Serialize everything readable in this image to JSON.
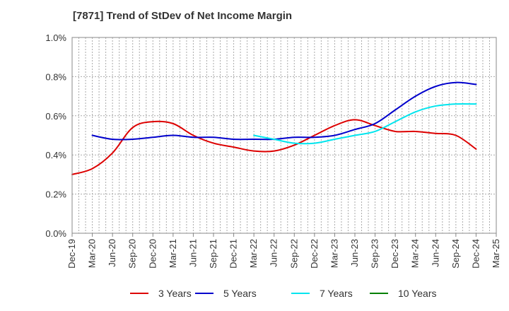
{
  "chart_data": {
    "type": "line",
    "title": "[7871]  Trend of StDev of Net Income Margin",
    "xlabel": "",
    "ylabel": "",
    "x": [
      "Dec-19",
      "Mar-20",
      "Jun-20",
      "Sep-20",
      "Dec-20",
      "Mar-21",
      "Jun-21",
      "Sep-21",
      "Dec-21",
      "Mar-22",
      "Jun-22",
      "Sep-22",
      "Dec-22",
      "Mar-23",
      "Jun-23",
      "Sep-23",
      "Dec-23",
      "Mar-24",
      "Jun-24",
      "Sep-24",
      "Dec-24",
      "Mar-25"
    ],
    "y_ticks": [
      "0.0%",
      "0.2%",
      "0.4%",
      "0.6%",
      "0.8%",
      "1.0%"
    ],
    "ylim": [
      0,
      1.0
    ],
    "y_unit": "%",
    "grid": true,
    "legend_position": "bottom",
    "series": [
      {
        "name": "3 Years",
        "color": "#dd0000",
        "values": [
          0.3,
          0.33,
          0.41,
          0.54,
          0.57,
          0.56,
          0.5,
          0.46,
          0.44,
          0.42,
          0.42,
          0.45,
          0.5,
          0.55,
          0.58,
          0.55,
          0.52,
          0.52,
          0.51,
          0.5,
          0.43,
          null
        ]
      },
      {
        "name": "5 Years",
        "color": "#0000cc",
        "values": [
          null,
          0.5,
          0.48,
          0.48,
          0.49,
          0.5,
          0.49,
          0.49,
          0.48,
          0.48,
          0.48,
          0.49,
          0.49,
          0.5,
          0.53,
          0.56,
          0.63,
          0.7,
          0.75,
          0.77,
          0.76,
          null
        ]
      },
      {
        "name": "7 Years",
        "color": "#00e5ee",
        "values": [
          null,
          null,
          null,
          null,
          null,
          null,
          null,
          null,
          null,
          0.5,
          0.48,
          0.46,
          0.46,
          0.48,
          0.5,
          0.52,
          0.57,
          0.62,
          0.65,
          0.66,
          0.66,
          null
        ]
      },
      {
        "name": "10 Years",
        "color": "#008000",
        "values": [
          null,
          null,
          null,
          null,
          null,
          null,
          null,
          null,
          null,
          null,
          null,
          null,
          null,
          null,
          null,
          null,
          null,
          null,
          null,
          null,
          null,
          null
        ]
      }
    ]
  }
}
